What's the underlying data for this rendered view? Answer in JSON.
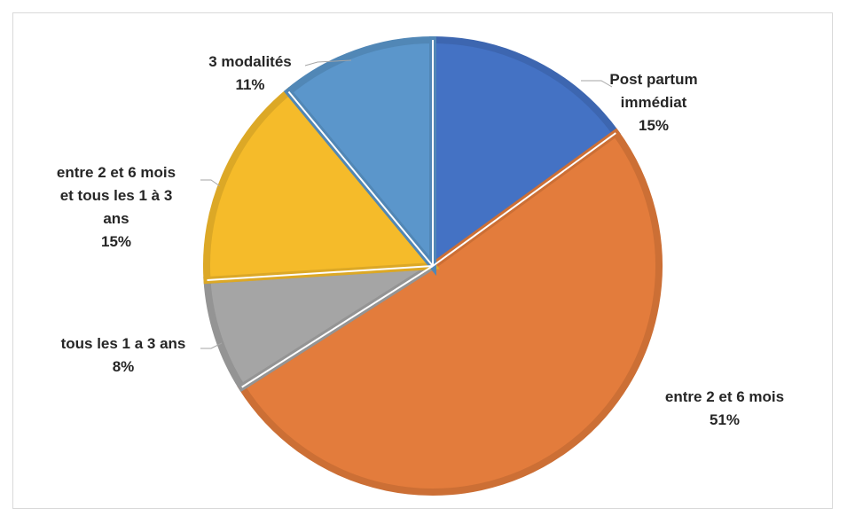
{
  "chart_data": {
    "type": "pie",
    "title": "",
    "slices": [
      {
        "name": "Post partum immédiat",
        "label_lines": [
          "Post partum",
          "immédiat"
        ],
        "percent_label": "15%",
        "value": 15,
        "color": "#4472c4",
        "edge": "#3d66b0"
      },
      {
        "name": "entre 2 et 6 mois",
        "label_lines": [
          "entre 2 et 6 mois"
        ],
        "percent_label": "51%",
        "value": 51,
        "color": "#e37c3c",
        "edge": "#cc6f35"
      },
      {
        "name": "tous les 1 a 3 ans",
        "label_lines": [
          "tous les 1 a 3 ans"
        ],
        "percent_label": "8%",
        "value": 8,
        "color": "#a5a5a5",
        "edge": "#949494"
      },
      {
        "name": "entre 2 et 6 mois et tous les 1 à 3 ans",
        "label_lines": [
          "entre 2 et 6 mois",
          "et tous les 1 à 3",
          "ans"
        ],
        "percent_label": "15%",
        "value": 15,
        "color": "#f5bb2a",
        "edge": "#dca826"
      },
      {
        "name": "3 modalités",
        "label_lines": [
          "3 modalités"
        ],
        "percent_label": "11%",
        "value": 11,
        "color": "#5b96cb",
        "edge": "#5187b6"
      }
    ]
  }
}
